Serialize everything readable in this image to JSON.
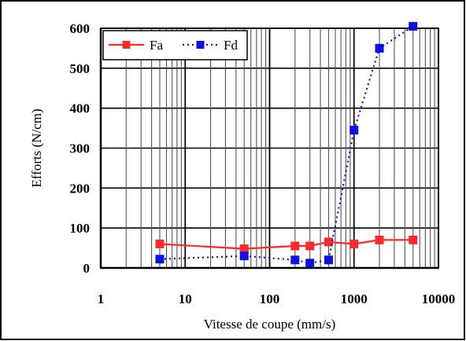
{
  "chart_data": {
    "type": "line",
    "title": "",
    "xlabel": "Vitesse de coupe (mm/s)",
    "ylabel": "Efforts (N/cm)",
    "x_scale": "log",
    "xlim": [
      1,
      10000
    ],
    "ylim": [
      0,
      600
    ],
    "x_ticks": [
      1,
      10,
      100,
      1000,
      10000
    ],
    "x_tick_labels": [
      "1",
      "10",
      "100",
      "1000",
      "10000"
    ],
    "y_ticks": [
      0,
      100,
      200,
      300,
      400,
      500,
      600
    ],
    "y_tick_labels": [
      "0",
      "100",
      "200",
      "300",
      "400",
      "500",
      "600"
    ],
    "grid": true,
    "legend_position": "top-left",
    "series": [
      {
        "name": "Fa",
        "color": "#ff2a2a",
        "line_style": "solid",
        "marker": "square",
        "x": [
          5,
          50,
          200,
          300,
          500,
          1000,
          2000,
          5000
        ],
        "y": [
          60,
          48,
          55,
          55,
          65,
          60,
          70,
          70
        ]
      },
      {
        "name": "Fd",
        "color": "#1010e0",
        "line_style": "dotted",
        "marker": "square",
        "x": [
          5,
          50,
          200,
          300,
          500,
          1000,
          2000,
          5000
        ],
        "y": [
          22,
          30,
          20,
          12,
          20,
          345,
          550,
          605
        ]
      }
    ]
  }
}
